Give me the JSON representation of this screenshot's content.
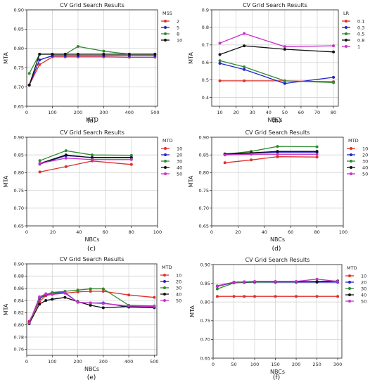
{
  "chart_data": [
    {
      "type": "line",
      "panel_label": "(a)",
      "title": "CV Grid Search Results",
      "xlabel": "MTD",
      "ylabel": "MTA",
      "xlim": [
        0,
        510
      ],
      "ylim": [
        0.65,
        0.9
      ],
      "xticks": [
        0,
        100,
        200,
        300,
        400,
        500
      ],
      "yticks": [
        0.65,
        0.7,
        0.75,
        0.8,
        0.85,
        0.9
      ],
      "ytick_decimals": 2,
      "grid": true,
      "legend_title": "MSS",
      "legend_position": "right",
      "series": [
        {
          "name": "2",
          "color": "#e0302a",
          "x": [
            10,
            50,
            100,
            150,
            200,
            300,
            400,
            500
          ],
          "y": [
            0.705,
            0.758,
            0.778,
            0.778,
            0.778,
            0.778,
            0.777,
            0.777
          ]
        },
        {
          "name": "5",
          "color": "#2424c8",
          "x": [
            10,
            50,
            100,
            150,
            200,
            300,
            400,
            500
          ],
          "y": [
            0.705,
            0.77,
            0.781,
            0.781,
            0.781,
            0.781,
            0.781,
            0.781
          ]
        },
        {
          "name": "8",
          "color": "#2e8b2e",
          "x": [
            10,
            50,
            100,
            150,
            200,
            300,
            400,
            500
          ],
          "y": [
            0.735,
            0.785,
            0.785,
            0.785,
            0.805,
            0.793,
            0.785,
            0.785
          ]
        },
        {
          "name": "10",
          "color": "#111111",
          "x": [
            10,
            50,
            100,
            150,
            200,
            300,
            400,
            500
          ],
          "y": [
            0.705,
            0.785,
            0.785,
            0.785,
            0.785,
            0.785,
            0.785,
            0.785
          ]
        }
      ]
    },
    {
      "type": "line",
      "panel_label": "(b)",
      "title": "CV Grid Search Results",
      "xlabel": "NBCs",
      "ylabel": "MTA",
      "xlim": [
        5,
        83
      ],
      "ylim": [
        0.35,
        0.9
      ],
      "xticks": [
        10,
        20,
        30,
        40,
        50,
        60,
        70,
        80
      ],
      "yticks": [
        0.4,
        0.5,
        0.6,
        0.7,
        0.8,
        0.9
      ],
      "ytick_decimals": 1,
      "grid": true,
      "legend_title": "LR",
      "legend_position": "right",
      "series": [
        {
          "name": "0.1",
          "color": "#e0302a",
          "x": [
            10,
            25,
            50,
            80
          ],
          "y": [
            0.495,
            0.495,
            0.495,
            0.49
          ]
        },
        {
          "name": "0.3",
          "color": "#2424c8",
          "x": [
            10,
            25,
            50,
            80
          ],
          "y": [
            0.595,
            0.56,
            0.48,
            0.515
          ]
        },
        {
          "name": "0.5",
          "color": "#2e8b2e",
          "x": [
            10,
            25,
            50,
            80
          ],
          "y": [
            0.61,
            0.575,
            0.495,
            0.485
          ]
        },
        {
          "name": "0.8",
          "color": "#111111",
          "x": [
            10,
            25,
            50,
            80
          ],
          "y": [
            0.645,
            0.695,
            0.675,
            0.66
          ]
        },
        {
          "name": "1",
          "color": "#c832c8",
          "x": [
            10,
            25,
            50,
            80
          ],
          "y": [
            0.71,
            0.765,
            0.69,
            0.695
          ]
        }
      ]
    },
    {
      "type": "line",
      "panel_label": "(c)",
      "title": "CV Grid Search Results",
      "xlabel": "NBCs",
      "ylabel": "MTA",
      "xlim": [
        0,
        100
      ],
      "ylim": [
        0.65,
        0.9
      ],
      "xticks": [
        0,
        20,
        40,
        60,
        80,
        100
      ],
      "yticks": [
        0.65,
        0.7,
        0.75,
        0.8,
        0.85,
        0.9
      ],
      "ytick_decimals": 2,
      "grid": true,
      "legend_title": "MTD",
      "legend_position": "right",
      "series": [
        {
          "name": "10",
          "color": "#e0302a",
          "x": [
            10,
            30,
            50,
            80
          ],
          "y": [
            0.802,
            0.817,
            0.833,
            0.823
          ]
        },
        {
          "name": "20",
          "color": "#2424c8",
          "x": [
            10,
            30,
            50,
            80
          ],
          "y": [
            0.824,
            0.848,
            0.843,
            0.843
          ]
        },
        {
          "name": "30",
          "color": "#2e8b2e",
          "x": [
            10,
            30,
            50,
            80
          ],
          "y": [
            0.834,
            0.862,
            0.85,
            0.849
          ]
        },
        {
          "name": "40",
          "color": "#111111",
          "x": [
            10,
            30,
            50,
            80
          ],
          "y": [
            0.826,
            0.85,
            0.842,
            0.842
          ]
        },
        {
          "name": "50",
          "color": "#c832c8",
          "x": [
            10,
            30,
            50,
            80
          ],
          "y": [
            0.826,
            0.841,
            0.837,
            0.837
          ]
        }
      ]
    },
    {
      "type": "line",
      "panel_label": "(d)",
      "title": "CV Grid Search Results",
      "xlabel": "NBCs",
      "ylabel": "MTA",
      "xlim": [
        0,
        100
      ],
      "ylim": [
        0.65,
        0.9
      ],
      "xticks": [
        0,
        20,
        40,
        60,
        80,
        100
      ],
      "yticks": [
        0.65,
        0.7,
        0.75,
        0.8,
        0.85,
        0.9
      ],
      "ytick_decimals": 2,
      "grid": true,
      "legend_title": "MTD",
      "legend_position": "right",
      "series": [
        {
          "name": "10",
          "color": "#e0302a",
          "x": [
            10,
            30,
            50,
            80
          ],
          "y": [
            0.828,
            0.836,
            0.845,
            0.844
          ]
        },
        {
          "name": "20",
          "color": "#2424c8",
          "x": [
            10,
            30,
            50,
            80
          ],
          "y": [
            0.852,
            0.855,
            0.858,
            0.858
          ]
        },
        {
          "name": "30",
          "color": "#2e8b2e",
          "x": [
            10,
            30,
            50,
            80
          ],
          "y": [
            0.852,
            0.86,
            0.874,
            0.873
          ]
        },
        {
          "name": "40",
          "color": "#111111",
          "x": [
            10,
            30,
            50,
            80
          ],
          "y": [
            0.853,
            0.856,
            0.86,
            0.86
          ]
        },
        {
          "name": "50",
          "color": "#c832c8",
          "x": [
            10,
            30,
            50,
            80
          ],
          "y": [
            0.85,
            0.852,
            0.852,
            0.852
          ]
        }
      ]
    },
    {
      "type": "line",
      "panel_label": "(e)",
      "title": "CV Grid Search Results",
      "xlabel": "NBCs",
      "ylabel": "MTA",
      "xlim": [
        0,
        510
      ],
      "ylim": [
        0.75,
        0.9
      ],
      "xticks": [
        0,
        100,
        200,
        300,
        400,
        500
      ],
      "yticks": [
        0.76,
        0.78,
        0.8,
        0.82,
        0.84,
        0.86,
        0.88,
        0.9
      ],
      "ytick_decimals": 2,
      "grid": true,
      "legend_title": "MTD",
      "legend_position": "right",
      "series": [
        {
          "name": "10",
          "color": "#e0302a",
          "x": [
            10,
            50,
            75,
            100,
            150,
            200,
            250,
            300,
            400,
            500
          ],
          "y": [
            0.806,
            0.838,
            0.848,
            0.85,
            0.852,
            0.854,
            0.855,
            0.855,
            0.849,
            0.845
          ]
        },
        {
          "name": "20",
          "color": "#2424c8",
          "x": [
            10,
            50,
            75,
            100,
            150,
            200,
            250,
            300,
            400,
            500
          ],
          "y": [
            0.804,
            0.843,
            0.849,
            0.852,
            0.853,
            0.837,
            0.836,
            0.836,
            0.829,
            0.828
          ]
        },
        {
          "name": "30",
          "color": "#2e8b2e",
          "x": [
            10,
            50,
            75,
            100,
            150,
            200,
            250,
            300,
            400,
            500
          ],
          "y": [
            0.802,
            0.845,
            0.85,
            0.853,
            0.855,
            0.857,
            0.859,
            0.859,
            0.832,
            0.831
          ]
        },
        {
          "name": "40",
          "color": "#111111",
          "x": [
            10,
            50,
            75,
            100,
            150,
            200,
            250,
            300,
            400,
            500
          ],
          "y": [
            0.802,
            0.834,
            0.84,
            0.842,
            0.845,
            0.838,
            0.832,
            0.828,
            0.83,
            0.829
          ]
        },
        {
          "name": "50",
          "color": "#c832c8",
          "x": [
            10,
            50,
            75,
            100,
            150,
            200,
            250,
            300,
            400,
            500
          ],
          "y": [
            0.803,
            0.846,
            0.851,
            0.85,
            0.852,
            0.837,
            0.836,
            0.835,
            0.831,
            0.83
          ]
        }
      ]
    },
    {
      "type": "line",
      "panel_label": "(f)",
      "title": "CV Grid Search Results",
      "xlabel": "NBCs",
      "ylabel": "MTA",
      "xlim": [
        0,
        310
      ],
      "ylim": [
        0.65,
        0.9
      ],
      "xticks": [
        0,
        50,
        100,
        150,
        200,
        250,
        300
      ],
      "yticks": [
        0.65,
        0.7,
        0.75,
        0.8,
        0.85,
        0.9
      ],
      "ytick_decimals": 2,
      "grid": true,
      "legend_title": "MTD",
      "legend_position": "right",
      "series": [
        {
          "name": "10",
          "color": "#e0302a",
          "x": [
            10,
            50,
            75,
            100,
            150,
            200,
            250,
            300
          ],
          "y": [
            0.815,
            0.815,
            0.815,
            0.815,
            0.815,
            0.815,
            0.815,
            0.815
          ]
        },
        {
          "name": "20",
          "color": "#2424c8",
          "x": [
            10,
            50,
            75,
            100,
            150,
            200,
            250,
            300
          ],
          "y": [
            0.842,
            0.852,
            0.852,
            0.853,
            0.853,
            0.853,
            0.853,
            0.853
          ]
        },
        {
          "name": "30",
          "color": "#2e8b2e",
          "x": [
            10,
            50,
            75,
            100,
            150,
            200,
            250,
            300
          ],
          "y": [
            0.835,
            0.851,
            0.853,
            0.853,
            0.854,
            0.854,
            0.855,
            0.856
          ]
        },
        {
          "name": "40",
          "color": "#111111",
          "x": [
            10,
            50,
            75,
            100,
            150,
            200,
            250,
            300
          ],
          "y": [
            0.843,
            0.853,
            0.854,
            0.854,
            0.854,
            0.854,
            0.854,
            0.856
          ]
        },
        {
          "name": "50",
          "color": "#c832c8",
          "x": [
            10,
            50,
            75,
            100,
            150,
            200,
            250,
            300
          ],
          "y": [
            0.843,
            0.853,
            0.854,
            0.855,
            0.855,
            0.855,
            0.861,
            0.855
          ]
        }
      ]
    }
  ]
}
